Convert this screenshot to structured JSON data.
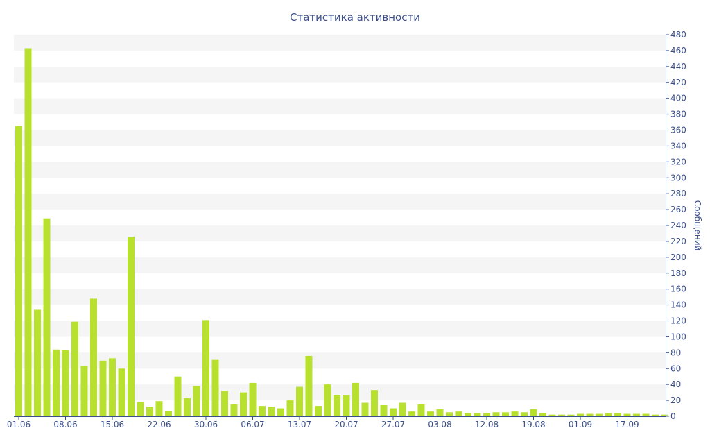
{
  "chart_data": {
    "type": "bar",
    "title": "Статистика активности",
    "xlabel": "",
    "ylabel": "Сообщений",
    "ylim": [
      0,
      480
    ],
    "ytick_step": 20,
    "grid": "horizontal alternating bands",
    "y_axis_position": "right",
    "x_tick_labels": [
      "01.06",
      "08.06",
      "15.06",
      "22.06",
      "30.06",
      "06.07",
      "13.07",
      "20.07",
      "27.07",
      "03.08",
      "12.08",
      "19.08",
      "01.09",
      "17.09"
    ],
    "x_tick_bar_index": [
      0,
      5,
      10,
      15,
      20,
      25,
      30,
      35,
      40,
      45,
      50,
      55,
      60,
      65
    ],
    "values": [
      365,
      463,
      134,
      249,
      84,
      83,
      119,
      63,
      148,
      70,
      73,
      60,
      226,
      18,
      12,
      19,
      7,
      50,
      23,
      38,
      121,
      71,
      32,
      15,
      30,
      42,
      13,
      12,
      10,
      20,
      37,
      76,
      13,
      40,
      27,
      27,
      42,
      17,
      33,
      14,
      10,
      17,
      6,
      15,
      6,
      9,
      5,
      6,
      4,
      4,
      4,
      5,
      5,
      6,
      5,
      9,
      4,
      2,
      2,
      2,
      3,
      3,
      3,
      4,
      4,
      3,
      3,
      3,
      2,
      2
    ],
    "bar_color": "#b8e02e",
    "band_color": "#f5f5f5",
    "axis_color": "#3b4f8c"
  }
}
